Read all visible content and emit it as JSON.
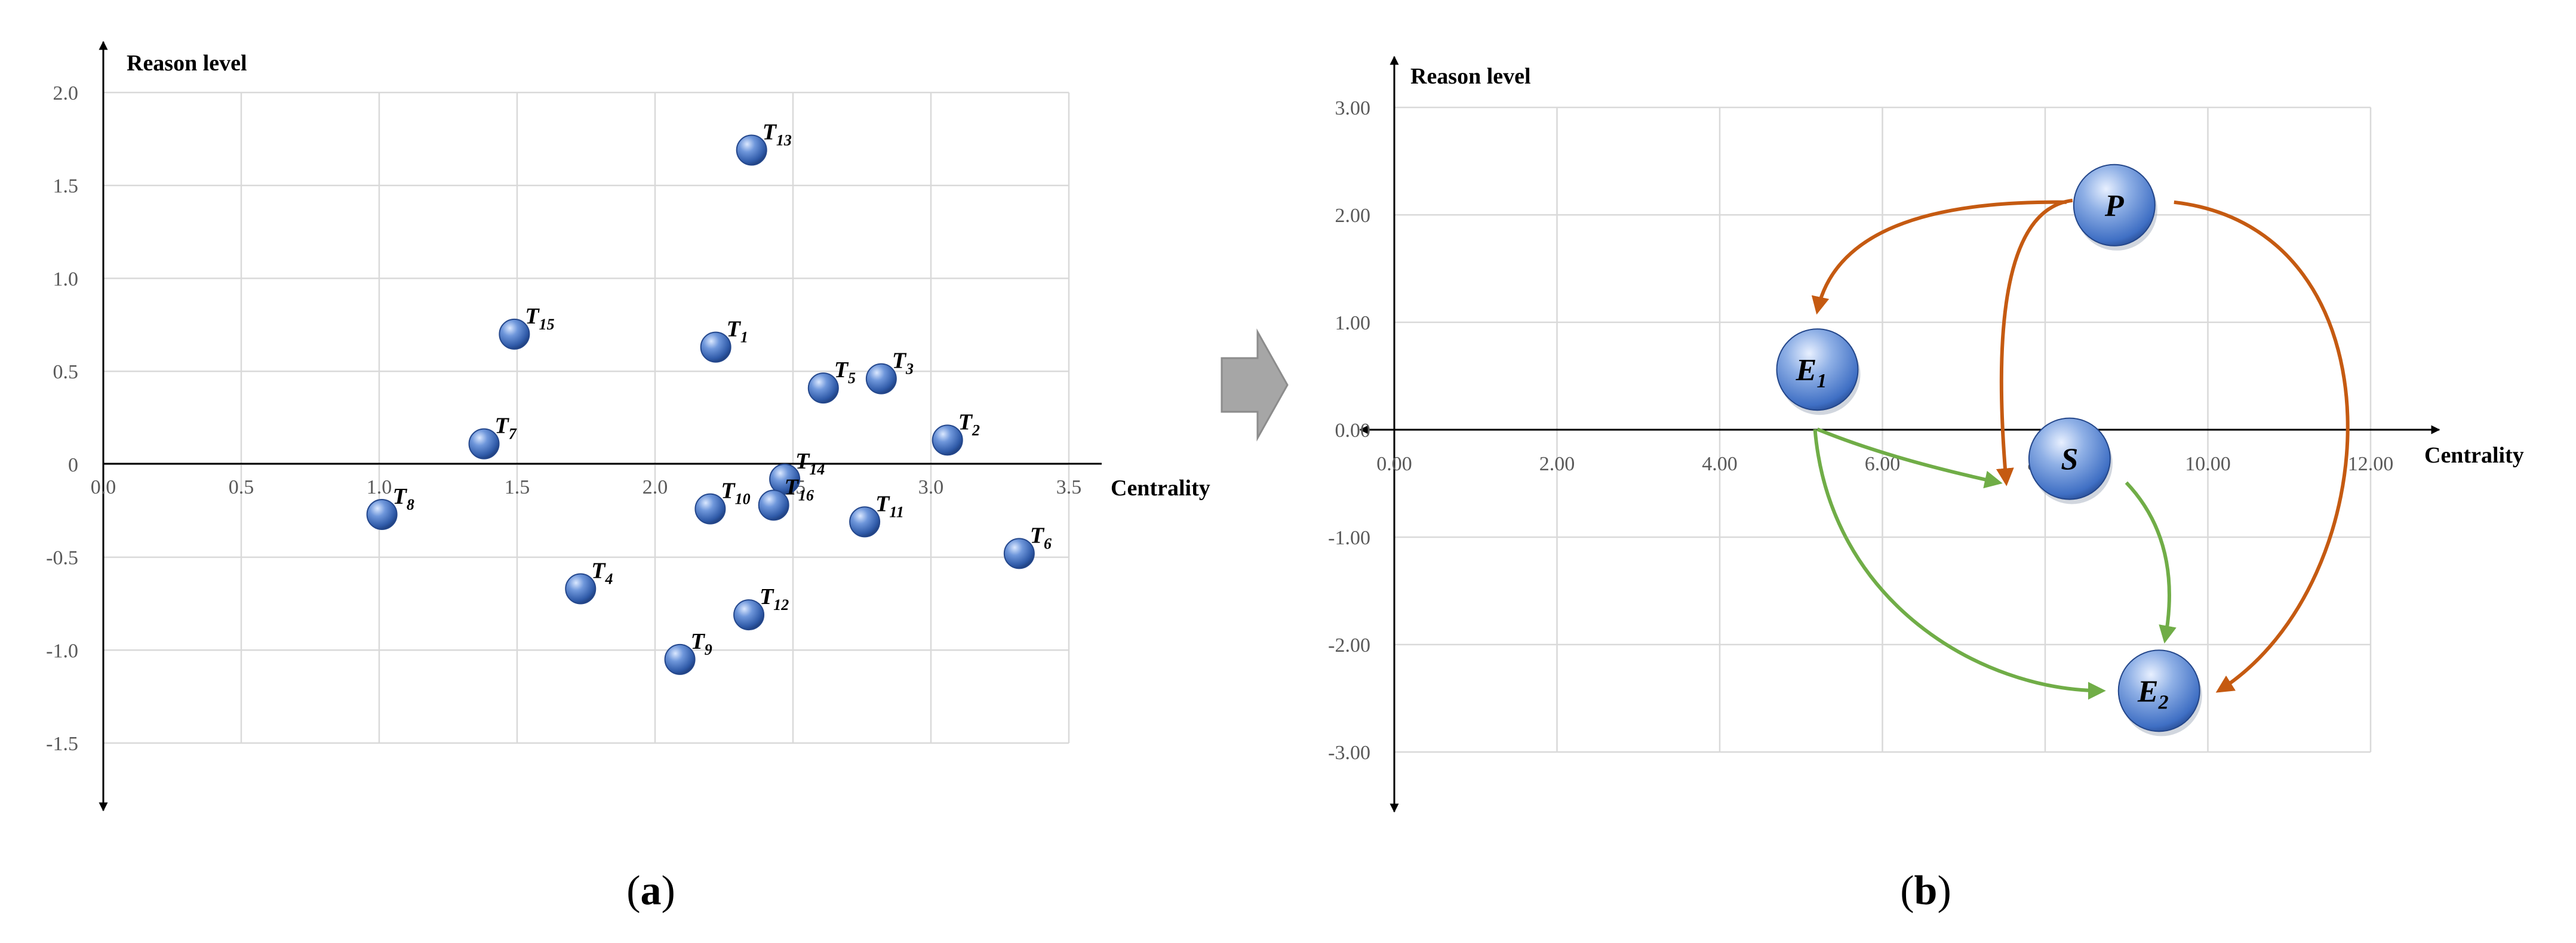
{
  "chart_data": [
    {
      "type": "scatter",
      "panel": "a",
      "title": "",
      "xlabel": "Centrality",
      "ylabel": "Reason level",
      "xlim": [
        0,
        3.5
      ],
      "ylim": [
        -1.5,
        2.0
      ],
      "xticks": [
        "0.0",
        "0.5",
        "1.0",
        "1.5",
        "2.0",
        "2.5",
        "3.0",
        "3.5"
      ],
      "yticks": [
        "2.0",
        "1.5",
        "1.0",
        "0.5",
        "0",
        "-0.5",
        "-1.0",
        "-1.5"
      ],
      "grid": true,
      "points": [
        {
          "main": "T",
          "sub": "1",
          "x": 2.22,
          "y": 0.63
        },
        {
          "main": "T",
          "sub": "2",
          "x": 3.06,
          "y": 0.13
        },
        {
          "main": "T",
          "sub": "3",
          "x": 2.82,
          "y": 0.46
        },
        {
          "main": "T",
          "sub": "4",
          "x": 1.73,
          "y": -0.67
        },
        {
          "main": "T",
          "sub": "5",
          "x": 2.61,
          "y": 0.41
        },
        {
          "main": "T",
          "sub": "6",
          "x": 3.32,
          "y": -0.48
        },
        {
          "main": "T",
          "sub": "7",
          "x": 1.38,
          "y": 0.11
        },
        {
          "main": "T",
          "sub": "8",
          "x": 1.01,
          "y": -0.27
        },
        {
          "main": "T",
          "sub": "9",
          "x": 2.09,
          "y": -1.05
        },
        {
          "main": "T",
          "sub": "10",
          "x": 2.2,
          "y": -0.24
        },
        {
          "main": "T",
          "sub": "11",
          "x": 2.76,
          "y": -0.31
        },
        {
          "main": "T",
          "sub": "12",
          "x": 2.34,
          "y": -0.81
        },
        {
          "main": "T",
          "sub": "13",
          "x": 2.35,
          "y": 1.69
        },
        {
          "main": "T",
          "sub": "14",
          "x": 2.47,
          "y": -0.08
        },
        {
          "main": "T",
          "sub": "15",
          "x": 1.49,
          "y": 0.7
        },
        {
          "main": "T",
          "sub": "16",
          "x": 2.43,
          "y": -0.22
        }
      ]
    },
    {
      "type": "scatter",
      "panel": "b",
      "title": "",
      "xlabel": "Centrality",
      "ylabel": "Reason level",
      "xlim": [
        0,
        12
      ],
      "ylim": [
        -3,
        3
      ],
      "xticks": [
        "0.00",
        "2.00",
        "4.00",
        "6.00",
        "8.00",
        "10.00",
        "12.00"
      ],
      "yticks": [
        "3.00",
        "2.00",
        "1.00",
        "0.00",
        "-1.00",
        "-2.00",
        "-3.00"
      ],
      "grid": true,
      "points": [
        {
          "main": "P",
          "sub": "",
          "x": 8.85,
          "y": 2.09
        },
        {
          "main": "E",
          "sub": "1",
          "x": 5.2,
          "y": 0.56
        },
        {
          "main": "S",
          "sub": "",
          "x": 8.3,
          "y": -0.27
        },
        {
          "main": "E",
          "sub": "2",
          "x": 9.4,
          "y": -2.43
        }
      ],
      "arrows": [
        {
          "from": "P",
          "to": "E1",
          "color": "#c55a11"
        },
        {
          "from": "P",
          "to": "S",
          "color": "#c55a11"
        },
        {
          "from": "P",
          "to": "E2",
          "color": "#c55a11"
        },
        {
          "from": "E1",
          "to": "S",
          "color": "#70ad47"
        },
        {
          "from": "E1",
          "to": "E2",
          "color": "#70ad47"
        },
        {
          "from": "S",
          "to": "E2",
          "color": "#70ad47"
        }
      ]
    }
  ],
  "captions": [
    {
      "open": "(",
      "letter": "a",
      "close": ")"
    },
    {
      "open": "(",
      "letter": "b",
      "close": ")"
    }
  ],
  "colors": {
    "point": "#4472c4",
    "cause_arrow": "#c55a11",
    "effect_arrow": "#70ad47",
    "panel_arrow": "#a6a6a6"
  }
}
